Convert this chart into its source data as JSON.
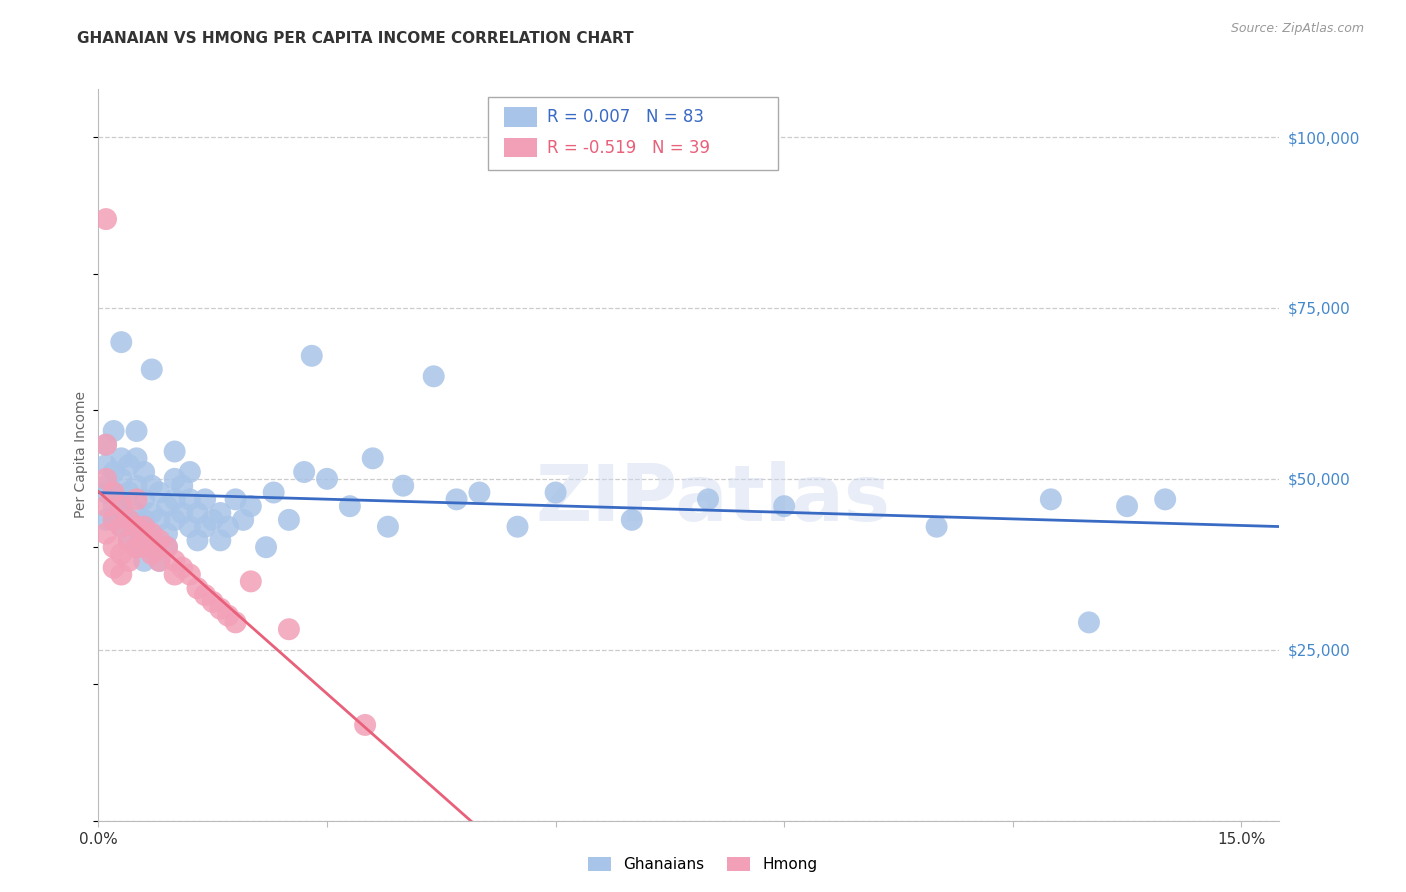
{
  "title": "GHANAIAN VS HMONG PER CAPITA INCOME CORRELATION CHART",
  "source": "Source: ZipAtlas.com",
  "ylabel": "Per Capita Income",
  "ytick_vals": [
    0,
    25000,
    50000,
    75000,
    100000
  ],
  "ytick_labels": [
    "",
    "$25,000",
    "$50,000",
    "$75,000",
    "$100,000"
  ],
  "xlim": [
    0.0,
    0.155
  ],
  "ylim": [
    0,
    107000
  ],
  "watermark": "ZIPatlas",
  "legend_r_ghanaian": "0.007",
  "legend_n_ghanaian": "83",
  "legend_r_hmong": "-0.519",
  "legend_n_hmong": "39",
  "color_ghanaian": "#a8c4e8",
  "color_hmong": "#f2a0b8",
  "color_line_ghanaian": "#3a6bc4",
  "color_line_hmong": "#e8607a",
  "color_title": "#333333",
  "color_source": "#999999",
  "color_ytick": "#4488cc",
  "color_grid": "#cccccc",
  "ghanaian_x": [
    0.001,
    0.001,
    0.001,
    0.001,
    0.001,
    0.002,
    0.002,
    0.002,
    0.002,
    0.002,
    0.003,
    0.003,
    0.003,
    0.003,
    0.003,
    0.003,
    0.004,
    0.004,
    0.004,
    0.004,
    0.005,
    0.005,
    0.005,
    0.005,
    0.005,
    0.006,
    0.006,
    0.006,
    0.006,
    0.006,
    0.007,
    0.007,
    0.007,
    0.007,
    0.008,
    0.008,
    0.008,
    0.009,
    0.009,
    0.009,
    0.01,
    0.01,
    0.01,
    0.01,
    0.011,
    0.011,
    0.012,
    0.012,
    0.012,
    0.013,
    0.013,
    0.014,
    0.014,
    0.015,
    0.016,
    0.016,
    0.017,
    0.018,
    0.019,
    0.02,
    0.022,
    0.023,
    0.025,
    0.027,
    0.028,
    0.03,
    0.033,
    0.036,
    0.038,
    0.04,
    0.044,
    0.047,
    0.05,
    0.055,
    0.06,
    0.07,
    0.08,
    0.09,
    0.11,
    0.125,
    0.13,
    0.135,
    0.14
  ],
  "ghanaian_y": [
    55000,
    49000,
    44000,
    52000,
    48000,
    57000,
    51000,
    46000,
    44000,
    48000,
    70000,
    46000,
    50000,
    43000,
    47000,
    53000,
    44000,
    48000,
    52000,
    41000,
    45000,
    49000,
    53000,
    40000,
    57000,
    43000,
    47000,
    51000,
    44000,
    38000,
    41000,
    45000,
    49000,
    66000,
    44000,
    48000,
    38000,
    42000,
    46000,
    40000,
    50000,
    54000,
    44000,
    47000,
    45000,
    49000,
    43000,
    47000,
    51000,
    41000,
    45000,
    43000,
    47000,
    44000,
    41000,
    45000,
    43000,
    47000,
    44000,
    46000,
    40000,
    48000,
    44000,
    51000,
    68000,
    50000,
    46000,
    53000,
    43000,
    49000,
    65000,
    47000,
    48000,
    43000,
    48000,
    44000,
    47000,
    46000,
    43000,
    47000,
    29000,
    46000,
    47000
  ],
  "hmong_x": [
    0.001,
    0.001,
    0.001,
    0.001,
    0.001,
    0.002,
    0.002,
    0.002,
    0.002,
    0.003,
    0.003,
    0.003,
    0.003,
    0.004,
    0.004,
    0.004,
    0.005,
    0.005,
    0.005,
    0.006,
    0.006,
    0.007,
    0.007,
    0.008,
    0.008,
    0.009,
    0.01,
    0.01,
    0.011,
    0.012,
    0.013,
    0.014,
    0.015,
    0.016,
    0.017,
    0.018,
    0.02,
    0.025,
    0.035
  ],
  "hmong_y": [
    88000,
    55000,
    46000,
    50000,
    42000,
    48000,
    44000,
    40000,
    37000,
    46000,
    43000,
    39000,
    36000,
    44000,
    41000,
    38000,
    47000,
    43000,
    40000,
    43000,
    40000,
    42000,
    39000,
    41000,
    38000,
    40000,
    38000,
    36000,
    37000,
    36000,
    34000,
    33000,
    32000,
    31000,
    30000,
    29000,
    35000,
    28000,
    14000
  ]
}
